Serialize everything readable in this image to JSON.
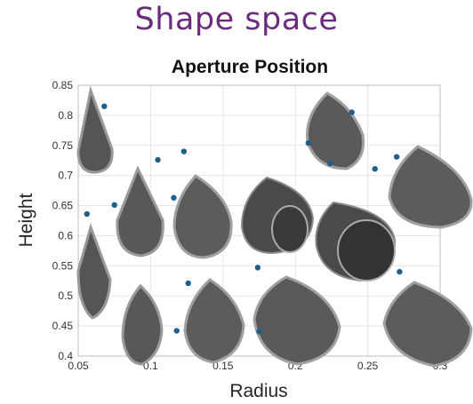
{
  "page": {
    "heading": "Shape space",
    "heading_color": "#6b2c7e"
  },
  "chart_data": {
    "type": "scatter",
    "title": "Aperture Position",
    "xlabel": "Radius",
    "ylabel": "Height",
    "xlim": [
      0.05,
      0.3
    ],
    "ylim": [
      0.4,
      0.85
    ],
    "xticks": [
      "0.05",
      "0.1",
      "0.15",
      "0.2",
      "0.25",
      "0.3"
    ],
    "yticks": [
      "0.4",
      "0.45",
      "0.5",
      "0.55",
      "0.6",
      "0.65",
      "0.7",
      "0.75",
      "0.8",
      "0.85"
    ],
    "grid": true,
    "marker_color": "#1f5f8b",
    "shell_color": "#5a5a5a",
    "points": [
      {
        "x": 0.056,
        "y": 0.636
      },
      {
        "x": 0.075,
        "y": 0.651
      },
      {
        "x": 0.068,
        "y": 0.815
      },
      {
        "x": 0.105,
        "y": 0.726
      },
      {
        "x": 0.116,
        "y": 0.663
      },
      {
        "x": 0.123,
        "y": 0.74
      },
      {
        "x": 0.126,
        "y": 0.521
      },
      {
        "x": 0.118,
        "y": 0.442
      },
      {
        "x": 0.174,
        "y": 0.547
      },
      {
        "x": 0.175,
        "y": 0.441
      },
      {
        "x": 0.209,
        "y": 0.754
      },
      {
        "x": 0.224,
        "y": 0.72
      },
      {
        "x": 0.239,
        "y": 0.805
      },
      {
        "x": 0.255,
        "y": 0.711
      },
      {
        "x": 0.27,
        "y": 0.731
      },
      {
        "x": 0.272,
        "y": 0.54
      }
    ]
  }
}
